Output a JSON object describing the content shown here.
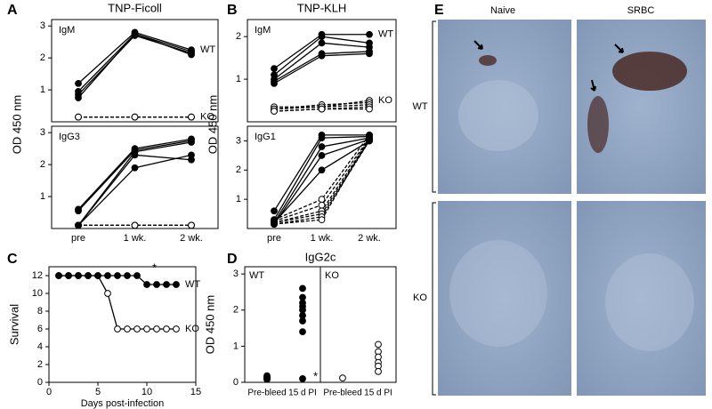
{
  "chart_data": [
    {
      "type": "line",
      "panel_label": "A",
      "title": "TNP-Ficoll",
      "ylabel": "OD 450 nm",
      "subtitle": "IgM",
      "ylim": [
        0,
        3.2
      ],
      "yticks": [
        1,
        2,
        3
      ],
      "series": [
        {
          "name": "WT",
          "color": "#000000",
          "marker_fill": "#000000",
          "dashed": false,
          "values": [
            [
              1.2,
              2.8,
              2.25
            ],
            [
              0.95,
              2.75,
              2.2
            ],
            [
              0.85,
              2.7,
              2.15
            ],
            [
              0.75,
              2.75,
              2.1
            ]
          ]
        },
        {
          "name": "KO",
          "color": "#000000",
          "marker_fill": "#ffffff",
          "dashed": true,
          "values": [
            [
              0.15,
              0.15,
              0.15
            ],
            [
              0.15,
              0.15,
              0.15
            ],
            [
              0.15,
              0.15,
              0.15
            ]
          ]
        }
      ]
    },
    {
      "type": "line",
      "subtitle": "IgG3",
      "categories": [
        "pre",
        "1 wk.",
        "2 wk."
      ],
      "ylim": [
        0,
        3.2
      ],
      "yticks": [
        1,
        2,
        3
      ],
      "series": [
        {
          "color": "#000000",
          "marker_fill": "#000000",
          "dashed": false,
          "values": [
            [
              0.6,
              2.5,
              2.8
            ],
            [
              0.55,
              2.45,
              2.75
            ],
            [
              0.1,
              2.4,
              2.7
            ],
            [
              0.1,
              2.3,
              2.15
            ],
            [
              0.1,
              1.9,
              2.3
            ]
          ]
        },
        {
          "color": "#000000",
          "marker_fill": "#ffffff",
          "dashed": true,
          "values": [
            [
              0.1,
              0.1,
              0.1
            ],
            [
              0.1,
              0.1,
              0.1
            ],
            [
              0.1,
              0.1,
              0.1
            ]
          ]
        }
      ]
    },
    {
      "type": "line",
      "panel_label": "B",
      "title": "TNP-KLH",
      "ylabel": "OD 450 nm",
      "subtitle": "IgM",
      "ylim": [
        0,
        2.4
      ],
      "yticks": [
        1,
        2
      ],
      "series": [
        {
          "name": "WT",
          "color": "#000000",
          "marker_fill": "#000000",
          "dashed": false,
          "values": [
            [
              1.25,
              2.05,
              2.05
            ],
            [
              1.1,
              2.0,
              1.85
            ],
            [
              1.0,
              1.85,
              1.75
            ],
            [
              0.95,
              1.6,
              1.65
            ],
            [
              0.9,
              1.55,
              1.6
            ]
          ]
        },
        {
          "name": "KO",
          "color": "#000000",
          "marker_fill": "#ffffff",
          "dashed": true,
          "values": [
            [
              0.35,
              0.35,
              0.5
            ],
            [
              0.3,
              0.4,
              0.45
            ],
            [
              0.3,
              0.35,
              0.4
            ],
            [
              0.25,
              0.3,
              0.35
            ],
            [
              0.25,
              0.3,
              0.3
            ]
          ]
        }
      ]
    },
    {
      "type": "line",
      "subtitle": "IgG1",
      "categories": [
        "pre",
        "1 wk.",
        "2 wk."
      ],
      "ylim": [
        0,
        3.5
      ],
      "yticks": [
        1,
        2,
        3
      ],
      "series": [
        {
          "color": "#000000",
          "marker_fill": "#000000",
          "dashed": false,
          "values": [
            [
              0.6,
              3.2,
              3.2
            ],
            [
              0.3,
              3.1,
              3.15
            ],
            [
              0.2,
              2.8,
              3.1
            ],
            [
              0.15,
              2.5,
              3.05
            ],
            [
              0.2,
              2.0,
              3.0
            ]
          ]
        },
        {
          "color": "#000000",
          "marker_fill": "#ffffff",
          "dashed": true,
          "values": [
            [
              0.3,
              1.0,
              3.2
            ],
            [
              0.25,
              0.8,
              3.1
            ],
            [
              0.2,
              0.6,
              3.05
            ],
            [
              0.2,
              0.5,
              3.0
            ],
            [
              0.15,
              0.4,
              3.0
            ],
            [
              0.15,
              0.3,
              3.1
            ]
          ]
        }
      ]
    },
    {
      "type": "line",
      "panel_label": "C",
      "ylabel": "Survival",
      "xlabel": "Days post-infection",
      "annotation": "*",
      "x": [
        1,
        2,
        3,
        4,
        5,
        6,
        7,
        8,
        9,
        10,
        11,
        12,
        13
      ],
      "xlim": [
        0,
        15
      ],
      "xticks": [
        0,
        5,
        10,
        15
      ],
      "ylim": [
        0,
        13
      ],
      "yticks": [
        0,
        2,
        4,
        6,
        8,
        10,
        12
      ],
      "series": [
        {
          "name": "WT",
          "color": "#000000",
          "marker_fill": "#000000",
          "dashed": false,
          "values": [
            12,
            12,
            12,
            12,
            12,
            12,
            12,
            12,
            12,
            11,
            11,
            11,
            11
          ]
        },
        {
          "name": "KO",
          "color": "#000000",
          "marker_fill": "#ffffff",
          "dashed": false,
          "values": [
            12,
            12,
            12,
            12,
            12,
            10,
            6,
            6,
            6,
            6,
            6,
            6,
            6
          ]
        }
      ]
    },
    {
      "type": "strip",
      "panel_label": "D",
      "title": "IgG2c",
      "ylabel": "OD 450 nm",
      "annotation": "*",
      "categories": [
        "Pre-bleed",
        "15 d PI"
      ],
      "ylim": [
        0,
        3.2
      ],
      "yticks": [
        0,
        1,
        2,
        3
      ],
      "series": [
        {
          "name": "WT",
          "color": "#000000",
          "marker_fill": "#000000",
          "values": [
            [
              0.1,
              0.15,
              0.12,
              0.08,
              0.18
            ],
            [
              2.6,
              2.35,
              2.2,
              2.1,
              2.0,
              1.85,
              1.7,
              1.4,
              0.1
            ]
          ]
        },
        {
          "name": "KO",
          "color": "#000000",
          "marker_fill": "#ffffff",
          "values": [
            [
              0.12
            ],
            [
              1.05,
              0.85,
              0.7,
              0.55,
              0.45,
              0.3
            ]
          ]
        }
      ]
    }
  ],
  "image_panel": {
    "panel_label": "E",
    "columns": [
      "Naive",
      "SRBC"
    ],
    "rows": [
      "WT",
      "KO"
    ]
  }
}
